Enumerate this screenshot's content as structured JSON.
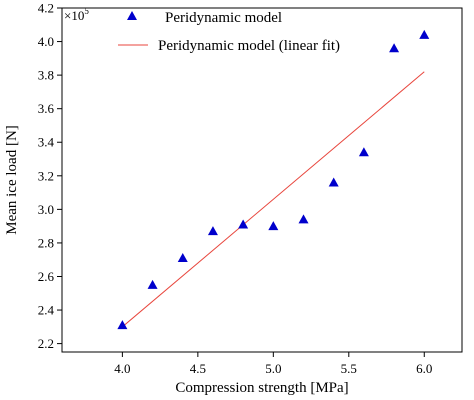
{
  "chart_data": {
    "type": "scatter",
    "xlabel": "Compression strength [MPa]",
    "ylabel": "Mean ice load [N]",
    "y_multiplier_base": "×10",
    "y_multiplier_exp": "5",
    "xlim": [
      3.6,
      6.25
    ],
    "ylim": [
      2.15,
      4.2
    ],
    "x_ticks": [
      4.0,
      4.5,
      5.0,
      5.5,
      6.0
    ],
    "x_tick_labels": [
      "4.0",
      "4.5",
      "5.0",
      "5.5",
      "6.0"
    ],
    "y_ticks": [
      2.2,
      2.4,
      2.6,
      2.8,
      3.0,
      3.2,
      3.4,
      3.6,
      3.8,
      4.0,
      4.2
    ],
    "y_tick_labels": [
      "2.2",
      "2.4",
      "2.6",
      "2.8",
      "3.0",
      "3.2",
      "3.4",
      "3.6",
      "3.8",
      "4.0",
      "4.2"
    ],
    "legend_position": "top",
    "grid": false,
    "series": [
      {
        "name": "Peridynamic model",
        "kind": "scatter",
        "marker": "triangle",
        "color": "#0000cc",
        "x": [
          4.0,
          4.2,
          4.4,
          4.6,
          4.8,
          5.0,
          5.2,
          5.4,
          5.6,
          5.8,
          6.0
        ],
        "y": [
          2.31,
          2.55,
          2.71,
          2.87,
          2.91,
          2.9,
          2.94,
          3.16,
          3.34,
          3.96,
          4.04
        ]
      },
      {
        "name": "Peridynamic model (linear fit)",
        "kind": "line",
        "color": "#e8453c",
        "x": [
          4.0,
          6.0
        ],
        "y": [
          2.3,
          3.82
        ]
      }
    ]
  }
}
